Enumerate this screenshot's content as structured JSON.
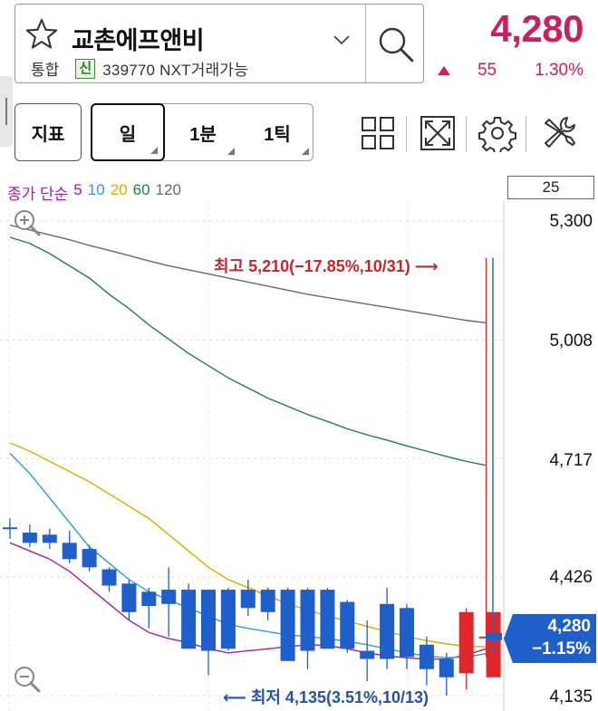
{
  "header": {
    "stock_name": "교촌에프앤비",
    "market": "통합",
    "credit_badge": "신",
    "code_info": "339770 NXT거래가능",
    "price": "4,280",
    "change": "55",
    "change_pct": "1.30%",
    "up_color": "#c8215f"
  },
  "toolbar": {
    "indicator_label": "지표",
    "periods": [
      "일",
      "1분",
      "1틱"
    ],
    "active_period": "일",
    "icons": [
      "layout-grid-icon",
      "fullscreen-icon",
      "settings-gear-icon",
      "tools-icon"
    ]
  },
  "chart": {
    "ma_title": "종가 단순",
    "ma_periods": [
      {
        "label": "5",
        "color": "#a020a0"
      },
      {
        "label": "10",
        "color": "#2aa0c8"
      },
      {
        "label": "20",
        "color": "#d4b000"
      },
      {
        "label": "60",
        "color": "#1e8040"
      },
      {
        "label": "120",
        "color": "#6a6a6a"
      }
    ],
    "visible_bars": "25",
    "y_ticks": [
      "5,300",
      "5,008",
      "4,717",
      "4,426",
      "4,135"
    ],
    "high_annotation": "최고 5,210(−17.85%,10/31)",
    "low_annotation": "최저 4,135(3.51%,10/13)",
    "current_price_tag": "4,280",
    "current_change_tag": "−1.15%",
    "up_color": "#e0262a",
    "down_color": "#1f5fc9"
  },
  "chart_data": {
    "type": "candlestick",
    "ylim": [
      4135,
      5300
    ],
    "candles": [
      {
        "o": 4548,
        "h": 4570,
        "l": 4520,
        "c": 4548
      },
      {
        "o": 4535,
        "h": 4555,
        "l": 4500,
        "c": 4510
      },
      {
        "o": 4530,
        "h": 4545,
        "l": 4495,
        "c": 4510
      },
      {
        "o": 4510,
        "h": 4540,
        "l": 4460,
        "c": 4470
      },
      {
        "o": 4495,
        "h": 4505,
        "l": 4440,
        "c": 4450
      },
      {
        "o": 4445,
        "h": 4450,
        "l": 4390,
        "c": 4405
      },
      {
        "o": 4410,
        "h": 4420,
        "l": 4320,
        "c": 4340
      },
      {
        "o": 4390,
        "h": 4400,
        "l": 4300,
        "c": 4355
      },
      {
        "o": 4395,
        "h": 4450,
        "l": 4280,
        "c": 4360
      },
      {
        "o": 4395,
        "h": 4410,
        "l": 4250,
        "c": 4250
      },
      {
        "o": 4395,
        "h": 4395,
        "l": 4185,
        "c": 4245
      },
      {
        "o": 4395,
        "h": 4400,
        "l": 4245,
        "c": 4250
      },
      {
        "o": 4395,
        "h": 4420,
        "l": 4330,
        "c": 4350
      },
      {
        "o": 4395,
        "h": 4400,
        "l": 4320,
        "c": 4340
      },
      {
        "o": 4395,
        "h": 4400,
        "l": 4220,
        "c": 4220
      },
      {
        "o": 4395,
        "h": 4400,
        "l": 4200,
        "c": 4245
      },
      {
        "o": 4395,
        "h": 4400,
        "l": 4250,
        "c": 4250
      },
      {
        "o": 4365,
        "h": 4370,
        "l": 4240,
        "c": 4250
      },
      {
        "o": 4245,
        "h": 4320,
        "l": 4170,
        "c": 4225
      },
      {
        "o": 4360,
        "h": 4400,
        "l": 4200,
        "c": 4225
      },
      {
        "o": 4350,
        "h": 4360,
        "l": 4200,
        "c": 4230
      },
      {
        "o": 4260,
        "h": 4280,
        "l": 4160,
        "c": 4200
      },
      {
        "o": 4225,
        "h": 4240,
        "l": 4135,
        "c": 4180
      },
      {
        "o": 4190,
        "h": 4350,
        "l": 4150,
        "c": 4340
      },
      {
        "o": 4280,
        "h": 5210,
        "l": 4230,
        "c": 4280
      }
    ],
    "ma": {
      "5": [
        4510,
        4490,
        4470,
        4440,
        4400,
        4360,
        4320,
        4290,
        4275,
        4265,
        4250,
        4240,
        4245,
        4250,
        4255,
        4260,
        4258,
        4250,
        4240,
        4232,
        4228,
        4224,
        4225,
        4235,
        4250
      ],
      "10": [
        4730,
        4680,
        4620,
        4560,
        4500,
        4460,
        4420,
        4390,
        4370,
        4350,
        4330,
        4310,
        4300,
        4292,
        4284,
        4280,
        4275,
        4268,
        4260,
        4250,
        4240,
        4232,
        4228,
        4230,
        4238
      ],
      "20": [
        4755,
        4735,
        4710,
        4685,
        4660,
        4630,
        4600,
        4570,
        4530,
        4490,
        4450,
        4420,
        4400,
        4380,
        4360,
        4345,
        4330,
        4318,
        4305,
        4292,
        4280,
        4270,
        4262,
        4256,
        4255
      ],
      "60": [
        5260,
        5245,
        5220,
        5190,
        5160,
        5120,
        5085,
        5045,
        5010,
        4975,
        4945,
        4915,
        4890,
        4865,
        4845,
        4825,
        4808,
        4790,
        4775,
        4762,
        4748,
        4735,
        4722,
        4710,
        4700
      ],
      "120": [
        5290,
        5278,
        5266,
        5254,
        5240,
        5228,
        5215,
        5202,
        5190,
        5180,
        5170,
        5160,
        5150,
        5140,
        5130,
        5120,
        5112,
        5104,
        5096,
        5088,
        5080,
        5072,
        5064,
        5056,
        5050
      ]
    }
  }
}
